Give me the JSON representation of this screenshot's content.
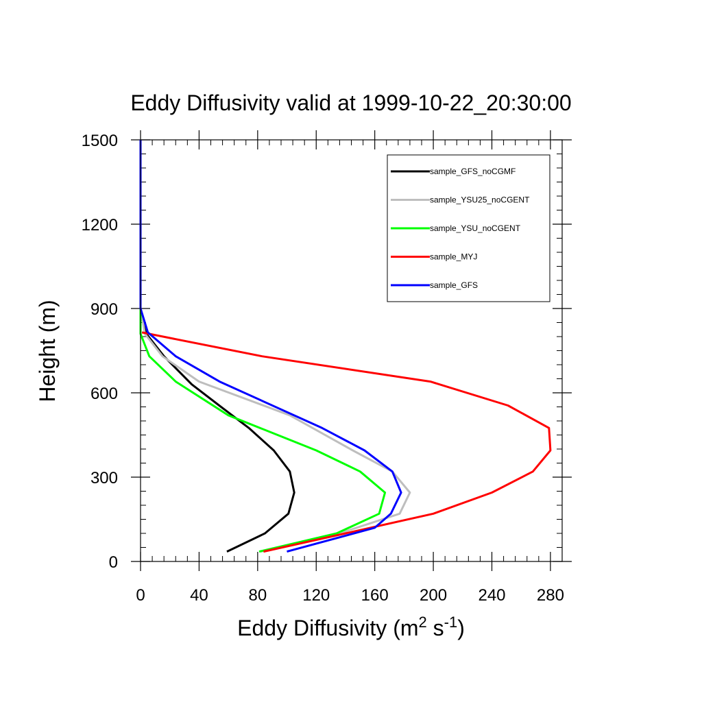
{
  "chart_data": {
    "type": "line",
    "title": "Eddy Diffusivity valid at 1999-10-22_20:30:00",
    "xlabel": "Eddy Diffusivity (m",
    "xlabel_sup1": "2",
    "xlabel_mid": " s",
    "xlabel_sup2": "-1",
    "xlabel_end": ")",
    "ylabel": "Height (m)",
    "xlim": [
      0,
      288
    ],
    "ylim": [
      0,
      1500
    ],
    "xticks": [
      0,
      40,
      80,
      120,
      160,
      200,
      240,
      280
    ],
    "yticks": [
      0,
      300,
      600,
      900,
      1200,
      1500
    ],
    "x_minor_step": 8,
    "y_minor_step": 50,
    "grid": false,
    "legend_position": "top-right",
    "series": [
      {
        "name": "sample_GFS_noCGMF",
        "color": "#000000",
        "x": [
          59,
          85,
          101,
          105,
          102,
          91,
          74,
          55,
          35,
          16,
          4,
          0,
          0,
          0,
          0
        ],
        "y": [
          35,
          100,
          170,
          245,
          320,
          395,
          475,
          550,
          630,
          730,
          810,
          900,
          1000,
          1200,
          1500
        ]
      },
      {
        "name": "sample_YSU25_noCGENT",
        "color": "#bebebe",
        "x": [
          82,
          130,
          177,
          184,
          172,
          145,
          102,
          40,
          15,
          3,
          0,
          0,
          0,
          0
        ],
        "y": [
          35,
          90,
          170,
          245,
          320,
          395,
          520,
          640,
          730,
          810,
          900,
          1000,
          1200,
          1500
        ]
      },
      {
        "name": "sample_YSU_noCGENT",
        "color": "#00ff00",
        "x": [
          81,
          134,
          163,
          167,
          150,
          120,
          60,
          24,
          6,
          0,
          0,
          0,
          0,
          0
        ],
        "y": [
          35,
          100,
          170,
          245,
          320,
          395,
          520,
          640,
          730,
          810,
          900,
          1000,
          1200,
          1500
        ]
      },
      {
        "name": "sample_MYJ",
        "color": "#ff0000",
        "x": [
          84,
          140,
          200,
          240,
          268,
          280,
          279,
          251,
          198,
          83,
          1
        ],
        "y": [
          35,
          100,
          170,
          245,
          320,
          395,
          475,
          555,
          640,
          730,
          815
        ]
      },
      {
        "name": "sample_GFS",
        "color": "#0000ff",
        "x": [
          100,
          160,
          171,
          178,
          172,
          153,
          124,
          54,
          24,
          5,
          0,
          0,
          0,
          0
        ],
        "y": [
          35,
          120,
          170,
          245,
          320,
          395,
          475,
          640,
          730,
          815,
          900,
          1000,
          1200,
          1500
        ]
      }
    ]
  }
}
